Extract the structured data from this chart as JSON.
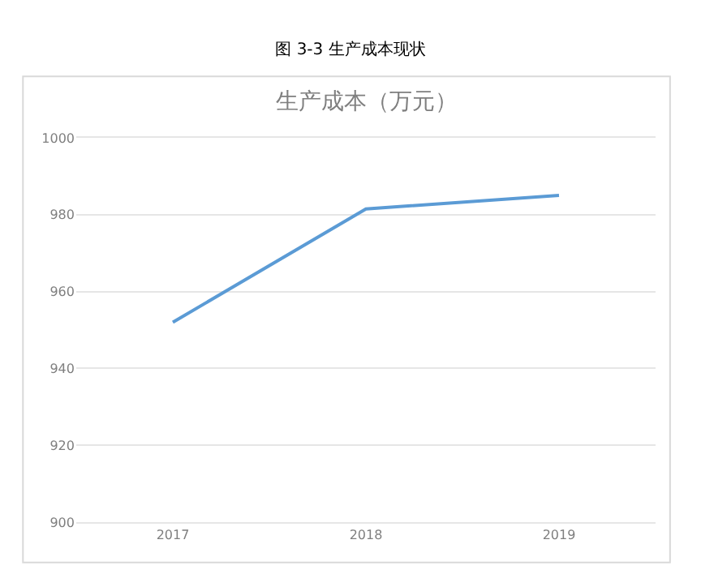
{
  "chart_data": {
    "type": "line",
    "title": "图 3-3 生产成本现状",
    "subtitle": "生产成本（万元）",
    "categories": [
      "2017",
      "2018",
      "2019"
    ],
    "series": [
      {
        "color": "#5b9bd5",
        "values": [
          952,
          981.5,
          985
        ]
      }
    ],
    "ylim": [
      900,
      1000
    ],
    "yticks": [
      900,
      920,
      940,
      960,
      980,
      1000
    ],
    "grid": "y",
    "marker": "none",
    "line_style": "solid"
  }
}
